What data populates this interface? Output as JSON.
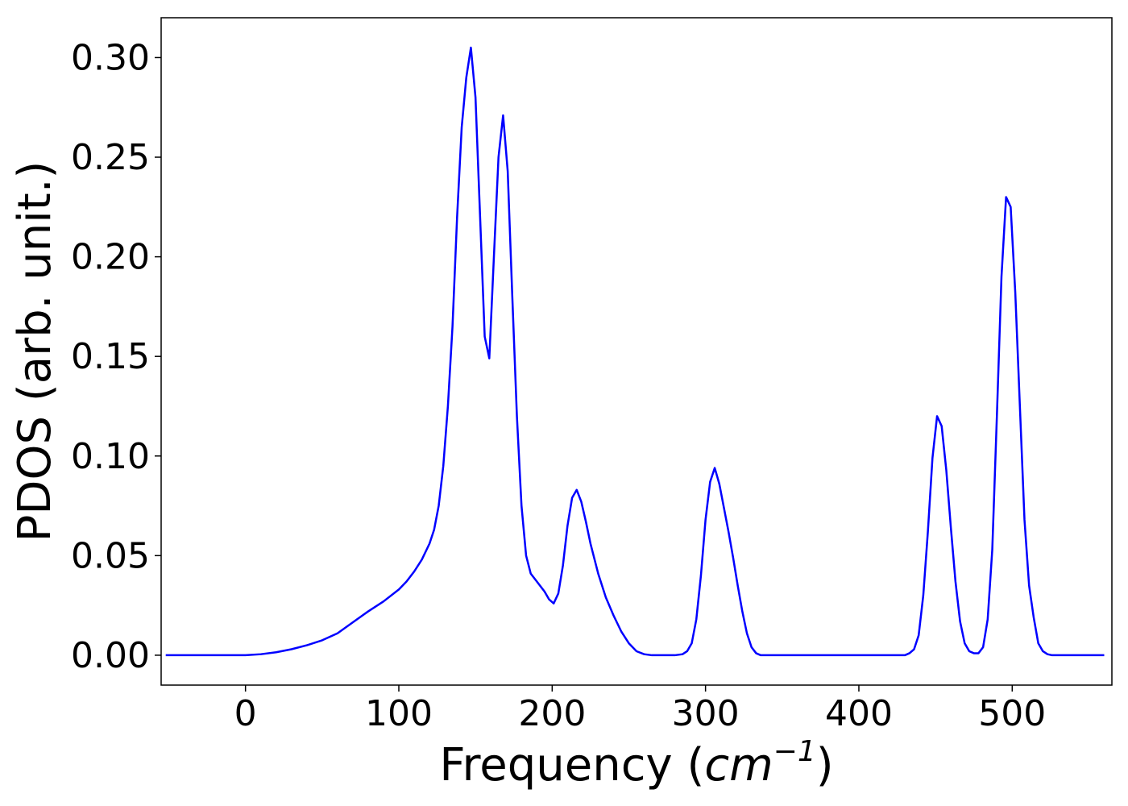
{
  "chart_data": {
    "type": "line",
    "title": "",
    "xlabel_main": "Frequency (",
    "xlabel_unit": "cm",
    "xlabel_exp": "−1",
    "xlabel_close": ")",
    "ylabel": "PDOS (arb. unit.)",
    "xlim": [
      -55,
      565
    ],
    "ylim": [
      -0.015,
      0.32
    ],
    "xticks": [
      0,
      100,
      200,
      300,
      400,
      500
    ],
    "xtick_labels": [
      "0",
      "100",
      "200",
      "300",
      "400",
      "500"
    ],
    "yticks": [
      0.0,
      0.05,
      0.1,
      0.15,
      0.2,
      0.25,
      0.3
    ],
    "ytick_labels": [
      "0.00",
      "0.05",
      "0.10",
      "0.15",
      "0.20",
      "0.25",
      "0.30"
    ],
    "grid": false,
    "series": [
      {
        "color": "#0000ff",
        "x": [
          -52,
          0,
          10,
          20,
          30,
          40,
          50,
          60,
          70,
          80,
          90,
          100,
          105,
          110,
          115,
          120,
          123,
          126,
          129,
          132,
          135,
          138,
          141,
          144,
          147,
          150,
          153,
          156,
          159,
          162,
          165,
          168,
          171,
          174,
          177,
          180,
          183,
          186,
          190,
          195,
          198,
          201,
          204,
          207,
          210,
          213,
          216,
          219,
          222,
          225,
          230,
          235,
          240,
          245,
          250,
          255,
          260,
          265,
          270,
          280,
          285,
          288,
          291,
          294,
          297,
          300,
          303,
          306,
          309,
          312,
          315,
          318,
          321,
          324,
          327,
          330,
          333,
          336,
          340,
          350,
          400,
          430,
          433,
          436,
          439,
          442,
          445,
          448,
          451,
          454,
          457,
          460,
          463,
          466,
          469,
          472,
          475,
          478,
          481,
          484,
          487,
          490,
          493,
          496,
          499,
          502,
          505,
          508,
          511,
          514,
          517,
          520,
          523,
          526,
          530,
          560
        ],
        "y": [
          0.0,
          0.0,
          0.0005,
          0.0015,
          0.003,
          0.005,
          0.0075,
          0.011,
          0.0165,
          0.022,
          0.027,
          0.033,
          0.037,
          0.042,
          0.048,
          0.056,
          0.063,
          0.075,
          0.095,
          0.125,
          0.165,
          0.22,
          0.265,
          0.29,
          0.305,
          0.28,
          0.22,
          0.16,
          0.149,
          0.2,
          0.25,
          0.271,
          0.243,
          0.18,
          0.12,
          0.075,
          0.05,
          0.041,
          0.037,
          0.032,
          0.028,
          0.026,
          0.031,
          0.045,
          0.065,
          0.079,
          0.083,
          0.077,
          0.067,
          0.056,
          0.041,
          0.029,
          0.02,
          0.012,
          0.006,
          0.002,
          0.0005,
          0.0,
          0.0,
          0.0,
          0.0005,
          0.002,
          0.006,
          0.018,
          0.04,
          0.068,
          0.087,
          0.094,
          0.086,
          0.074,
          0.062,
          0.049,
          0.035,
          0.022,
          0.011,
          0.004,
          0.001,
          0.0,
          0.0,
          0.0,
          0.0,
          0.0,
          0.001,
          0.003,
          0.01,
          0.03,
          0.062,
          0.099,
          0.12,
          0.115,
          0.093,
          0.064,
          0.037,
          0.017,
          0.006,
          0.002,
          0.001,
          0.001,
          0.004,
          0.018,
          0.053,
          0.12,
          0.19,
          0.23,
          0.225,
          0.182,
          0.125,
          0.068,
          0.035,
          0.019,
          0.006,
          0.002,
          0.0005,
          0.0,
          0.0,
          0.0
        ]
      }
    ]
  }
}
